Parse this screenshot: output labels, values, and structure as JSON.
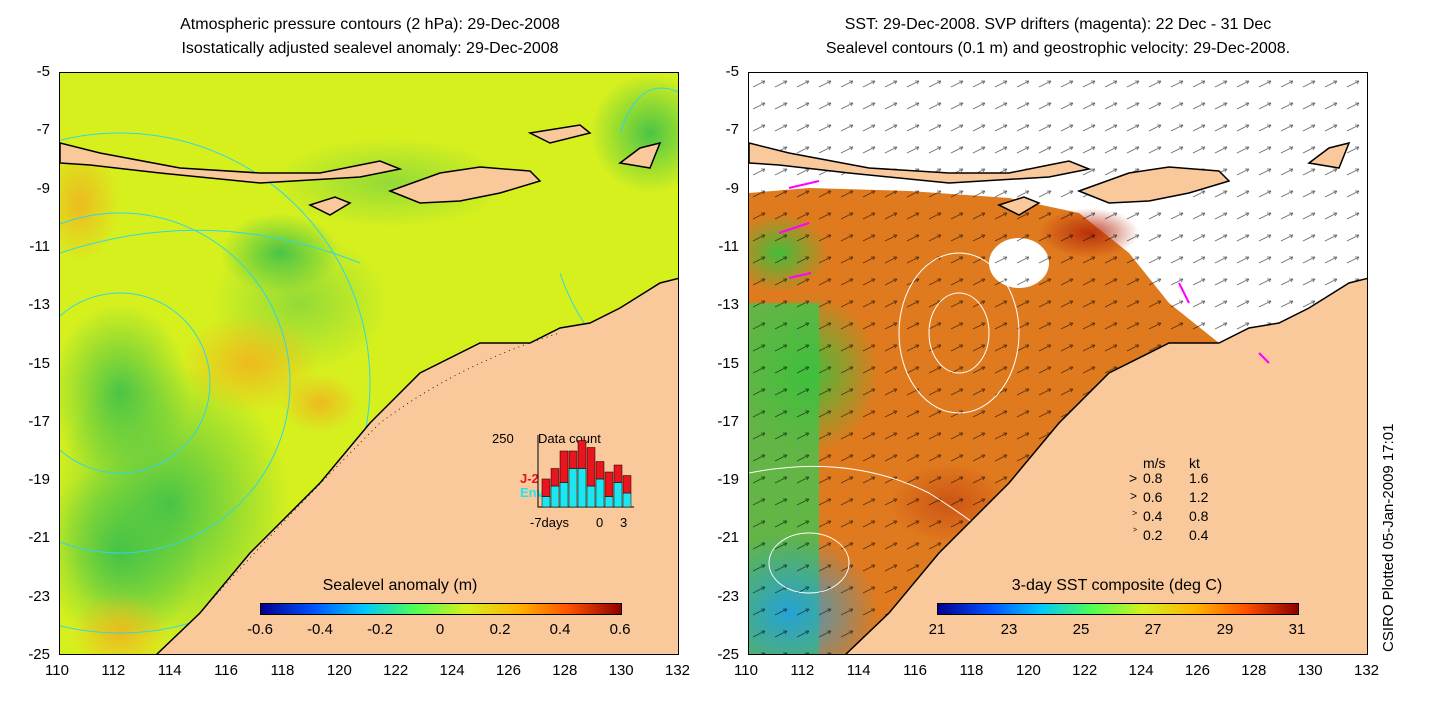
{
  "left_panel": {
    "title_line1": "Atmospheric pressure contours (2 hPa): 29-Dec-2008",
    "title_line2": "Isostatically adjusted sealevel anomaly: 29-Dec-2008",
    "colorbar": {
      "label": "Sealevel anomaly (m)",
      "ticks": [
        "-0.6",
        "-0.4",
        "-0.2",
        "0",
        "0.2",
        "0.4",
        "0.6"
      ]
    },
    "inset": {
      "max_label": "250",
      "title": "Data count",
      "legend": [
        {
          "name": "J-2",
          "color": "#e8141e"
        },
        {
          "name": "Envi",
          "color": "#1ee6f0"
        }
      ],
      "x_labels": [
        "-7days",
        "0",
        "3"
      ],
      "bars": [
        {
          "envi": 0.15,
          "j2": 0.25
        },
        {
          "envi": 0.3,
          "j2": 0.25
        },
        {
          "envi": 0.35,
          "j2": 0.45
        },
        {
          "envi": 0.55,
          "j2": 0.25
        },
        {
          "envi": 0.55,
          "j2": 0.4
        },
        {
          "envi": 0.3,
          "j2": 0.55
        },
        {
          "envi": 0.4,
          "j2": 0.25
        },
        {
          "envi": 0.15,
          "j2": 0.35
        },
        {
          "envi": 0.35,
          "j2": 0.25
        },
        {
          "envi": 0.2,
          "j2": 0.25
        }
      ]
    }
  },
  "right_panel": {
    "title_line1": "SST: 29-Dec-2008. SVP drifters (magenta): 22 Dec - 31 Dec",
    "title_line2": "Sealevel contours (0.1 m) and geostrophic velocity: 29-Dec-2008.",
    "colorbar": {
      "label": "3-day SST composite (deg C)",
      "ticks": [
        "21",
        "23",
        "25",
        "27",
        "29",
        "31"
      ]
    },
    "velocity_key": {
      "header_ms": "m/s",
      "header_kt": "kt",
      "rows": [
        {
          "ms": "0.8",
          "kt": "1.6"
        },
        {
          "ms": "0.6",
          "kt": "1.2"
        },
        {
          "ms": "0.4",
          "kt": "0.8"
        },
        {
          "ms": "0.2",
          "kt": "0.4"
        }
      ]
    }
  },
  "axes": {
    "x_ticks": [
      "110",
      "112",
      "114",
      "116",
      "118",
      "120",
      "122",
      "124",
      "126",
      "128",
      "130",
      "132"
    ],
    "y_ticks": [
      "-5",
      "-7",
      "-9",
      "-11",
      "-13",
      "-15",
      "-17",
      "-19",
      "-21",
      "-23",
      "-25"
    ],
    "lon_range": [
      110,
      132
    ],
    "lat_range": [
      -25,
      -5
    ]
  },
  "credit": "CSIRO Plotted 05-Jan-2009 17:01",
  "colors": {
    "land": "#f9c89b",
    "sla_background": "#d6f01e",
    "sst_background": "#e07a1e",
    "pressure_contour": "#2fd6e6"
  }
}
